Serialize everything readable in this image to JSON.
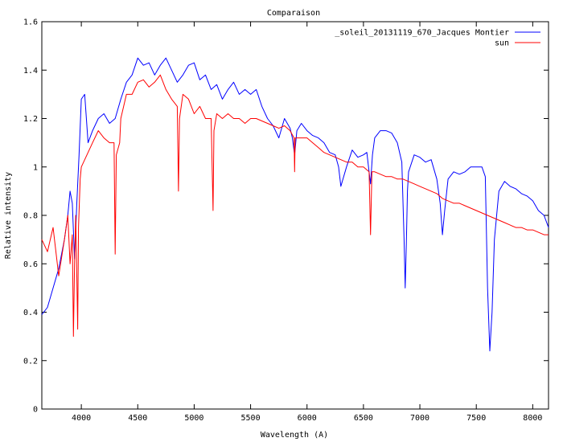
{
  "chart_data": {
    "type": "line",
    "title": "Comparaison",
    "xlabel": "Wavelength (A)",
    "ylabel": "Relative intensity",
    "xlim": [
      3650,
      8140
    ],
    "ylim": [
      0,
      1.6
    ],
    "xticks": [
      4000,
      4500,
      5000,
      5500,
      6000,
      6500,
      7000,
      7500,
      8000
    ],
    "yticks": [
      0,
      0.2,
      0.4,
      0.6,
      0.8,
      1,
      1.2,
      1.4,
      1.6
    ],
    "ytick_labels": [
      "0",
      "0.2",
      "0.4",
      "0.6",
      "0.8",
      "1",
      "1.2",
      "1.4",
      "1.6"
    ],
    "grid": false,
    "legend_position": "top-right",
    "series": [
      {
        "name": "_soleil_20131119_670_Jacques Montier",
        "color": "#0000ff",
        "x": [
          3650,
          3700,
          3750,
          3800,
          3850,
          3880,
          3900,
          3920,
          3940,
          3960,
          3980,
          4000,
          4030,
          4060,
          4100,
          4150,
          4200,
          4250,
          4300,
          4350,
          4400,
          4450,
          4500,
          4550,
          4600,
          4650,
          4700,
          4750,
          4800,
          4850,
          4900,
          4950,
          5000,
          5050,
          5100,
          5150,
          5200,
          5250,
          5300,
          5350,
          5400,
          5450,
          5500,
          5550,
          5600,
          5650,
          5700,
          5750,
          5800,
          5850,
          5870,
          5890,
          5910,
          5950,
          6000,
          6050,
          6100,
          6150,
          6200,
          6250,
          6280,
          6300,
          6350,
          6400,
          6450,
          6500,
          6530,
          6550,
          6563,
          6580,
          6600,
          6650,
          6700,
          6750,
          6800,
          6840,
          6860,
          6870,
          6880,
          6890,
          6900,
          6950,
          7000,
          7050,
          7100,
          7150,
          7180,
          7200,
          7220,
          7250,
          7300,
          7350,
          7400,
          7450,
          7500,
          7550,
          7580,
          7600,
          7620,
          7640,
          7660,
          7700,
          7750,
          7800,
          7850,
          7900,
          7950,
          8000,
          8050,
          8100,
          8140
        ],
        "y": [
          0.39,
          0.42,
          0.5,
          0.58,
          0.7,
          0.8,
          0.9,
          0.85,
          0.62,
          0.85,
          1.05,
          1.28,
          1.3,
          1.1,
          1.15,
          1.2,
          1.22,
          1.18,
          1.2,
          1.28,
          1.35,
          1.38,
          1.45,
          1.42,
          1.43,
          1.38,
          1.42,
          1.45,
          1.4,
          1.35,
          1.38,
          1.42,
          1.43,
          1.36,
          1.38,
          1.32,
          1.34,
          1.28,
          1.32,
          1.35,
          1.3,
          1.32,
          1.3,
          1.32,
          1.25,
          1.2,
          1.17,
          1.12,
          1.2,
          1.16,
          1.12,
          1.05,
          1.15,
          1.18,
          1.15,
          1.13,
          1.12,
          1.1,
          1.06,
          1.05,
          1.0,
          0.92,
          1.0,
          1.07,
          1.04,
          1.05,
          1.06,
          0.98,
          0.93,
          1.05,
          1.12,
          1.15,
          1.15,
          1.14,
          1.1,
          1.02,
          0.7,
          0.5,
          0.68,
          0.9,
          0.98,
          1.05,
          1.04,
          1.02,
          1.03,
          0.95,
          0.85,
          0.72,
          0.82,
          0.95,
          0.98,
          0.97,
          0.98,
          1.0,
          1.0,
          1.0,
          0.96,
          0.5,
          0.24,
          0.4,
          0.7,
          0.9,
          0.94,
          0.92,
          0.91,
          0.89,
          0.88,
          0.86,
          0.82,
          0.8,
          0.75
        ]
      },
      {
        "name": "sun",
        "color": "#ff0000",
        "x": [
          3650,
          3700,
          3750,
          3800,
          3850,
          3880,
          3900,
          3920,
          3930,
          3940,
          3950,
          3960,
          3968,
          3975,
          3990,
          4000,
          4050,
          4100,
          4150,
          4200,
          4250,
          4290,
          4300,
          4310,
          4340,
          4350,
          4400,
          4450,
          4500,
          4550,
          4600,
          4650,
          4700,
          4750,
          4800,
          4850,
          4861,
          4870,
          4900,
          4950,
          5000,
          5050,
          5100,
          5150,
          5167,
          5175,
          5200,
          5250,
          5300,
          5350,
          5400,
          5450,
          5500,
          5550,
          5600,
          5650,
          5700,
          5750,
          5800,
          5850,
          5885,
          5890,
          5895,
          5900,
          5950,
          6000,
          6050,
          6100,
          6150,
          6200,
          6250,
          6300,
          6350,
          6400,
          6450,
          6500,
          6550,
          6563,
          6575,
          6600,
          6650,
          6700,
          6750,
          6800,
          6850,
          6900,
          6950,
          7000,
          7050,
          7100,
          7150,
          7200,
          7250,
          7300,
          7350,
          7400,
          7450,
          7500,
          7550,
          7600,
          7650,
          7700,
          7750,
          7800,
          7850,
          7900,
          7950,
          8000,
          8050,
          8100,
          8140
        ],
        "y": [
          0.7,
          0.65,
          0.75,
          0.55,
          0.7,
          0.8,
          0.6,
          0.72,
          0.3,
          0.6,
          0.8,
          0.55,
          0.33,
          0.75,
          0.95,
          1.0,
          1.05,
          1.1,
          1.15,
          1.12,
          1.1,
          1.1,
          0.64,
          1.05,
          1.1,
          1.2,
          1.3,
          1.3,
          1.35,
          1.36,
          1.33,
          1.35,
          1.38,
          1.32,
          1.28,
          1.25,
          0.9,
          1.2,
          1.3,
          1.28,
          1.22,
          1.25,
          1.2,
          1.2,
          0.82,
          1.15,
          1.22,
          1.2,
          1.22,
          1.2,
          1.2,
          1.18,
          1.2,
          1.2,
          1.19,
          1.18,
          1.17,
          1.16,
          1.17,
          1.15,
          1.12,
          0.98,
          1.12,
          1.12,
          1.12,
          1.12,
          1.1,
          1.08,
          1.06,
          1.05,
          1.04,
          1.03,
          1.02,
          1.02,
          1.0,
          1.0,
          0.98,
          0.72,
          0.98,
          0.98,
          0.97,
          0.96,
          0.96,
          0.95,
          0.95,
          0.94,
          0.93,
          0.92,
          0.91,
          0.9,
          0.89,
          0.87,
          0.86,
          0.85,
          0.85,
          0.84,
          0.83,
          0.82,
          0.81,
          0.8,
          0.79,
          0.78,
          0.77,
          0.76,
          0.75,
          0.75,
          0.74,
          0.74,
          0.73,
          0.72,
          0.72
        ]
      }
    ]
  }
}
